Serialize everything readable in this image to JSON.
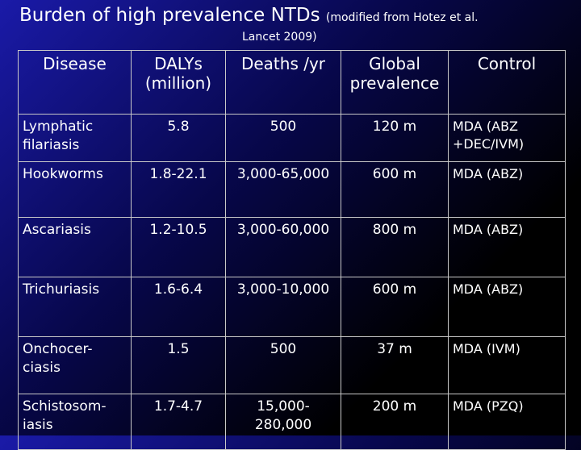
{
  "title": {
    "main": "Burden of high prevalence NTDs",
    "modifier": "(modified from Hotez et al.",
    "line2": "Lancet 2009)"
  },
  "table": {
    "headers": [
      "Disease",
      "DALYs (million)",
      "Deaths /yr",
      "Global prevalence",
      "Control"
    ],
    "rows": [
      {
        "disease": "Lymphatic filariasis",
        "dalys": "5.8",
        "deaths": "500",
        "prevalence": "120 m",
        "control": "MDA (ABZ +DEC/IVM)"
      },
      {
        "disease": "Hookworms",
        "dalys": "1.8-22.1",
        "deaths": "3,000-65,000",
        "prevalence": "600 m",
        "control": "MDA (ABZ)"
      },
      {
        "disease": "Ascariasis",
        "dalys": "1.2-10.5",
        "deaths": "3,000-60,000",
        "prevalence": "800 m",
        "control": "MDA (ABZ)"
      },
      {
        "disease": "Trichuriasis",
        "dalys": "1.6-6.4",
        "deaths": "3,000-10,000",
        "prevalence": "600 m",
        "control": "MDA (ABZ)"
      },
      {
        "disease": "Onchocer-ciasis",
        "dalys": "1.5",
        "deaths": "500",
        "prevalence": "37 m",
        "control": "MDA (IVM)"
      },
      {
        "disease": "Schistosom-iasis",
        "dalys": "1.7-4.7",
        "deaths": "15,000-280,000",
        "prevalence": "200 m",
        "control": "MDA (PZQ)"
      }
    ]
  }
}
